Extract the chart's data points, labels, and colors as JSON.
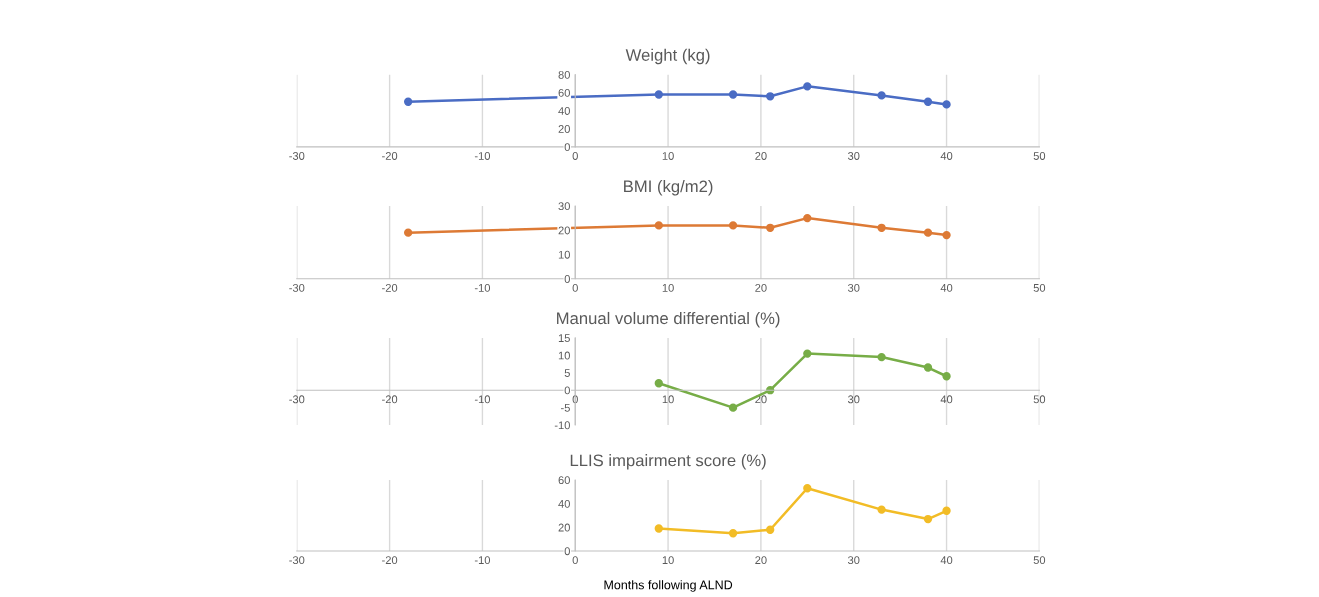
{
  "chart_data": [
    {
      "type": "line",
      "title": "Weight (kg)",
      "series": [
        {
          "color": "#4a6cc4",
          "x": [
            -18,
            9,
            17,
            21,
            25,
            33,
            38,
            40
          ],
          "values": [
            50,
            58,
            58,
            56,
            67,
            57,
            50,
            47
          ]
        }
      ],
      "xlim": [
        -30,
        50
      ],
      "xticks": [
        -30,
        -20,
        -10,
        0,
        10,
        20,
        30,
        40,
        50
      ],
      "ylim": [
        0,
        80
      ],
      "yticks": [
        0,
        20,
        40,
        60,
        80
      ],
      "grid": "x",
      "marker": "circle",
      "line_style": "solid"
    },
    {
      "type": "line",
      "title": "BMI (kg/m2)",
      "series": [
        {
          "color": "#dd7a35",
          "x": [
            -18,
            9,
            17,
            21,
            25,
            33,
            38,
            40
          ],
          "values": [
            19,
            22,
            22,
            21,
            25,
            21,
            19,
            18
          ]
        }
      ],
      "xlim": [
        -30,
        50
      ],
      "xticks": [
        -30,
        -20,
        -10,
        0,
        10,
        20,
        30,
        40,
        50
      ],
      "ylim": [
        0,
        30
      ],
      "yticks": [
        0,
        10,
        20,
        30
      ],
      "grid": "x",
      "marker": "circle",
      "line_style": "solid"
    },
    {
      "type": "line",
      "title": "Manual volume differential (%)",
      "series": [
        {
          "color": "#77ad47",
          "x": [
            9,
            17,
            21,
            25,
            33,
            38,
            40
          ],
          "values": [
            2,
            -5,
            0,
            10.5,
            9.5,
            6.5,
            4
          ]
        }
      ],
      "xlim": [
        -30,
        50
      ],
      "xticks": [
        -30,
        -20,
        -10,
        0,
        10,
        20,
        30,
        40,
        50
      ],
      "ylim": [
        -10,
        15
      ],
      "yticks": [
        -10,
        -5,
        0,
        5,
        10,
        15
      ],
      "grid": "x",
      "marker": "circle",
      "line_style": "solid"
    },
    {
      "type": "line",
      "title": "LLIS impairment score (%)",
      "xlabel": "Months following ALND",
      "series": [
        {
          "color": "#f2bc26",
          "x": [
            9,
            17,
            21,
            25,
            33,
            38,
            40
          ],
          "values": [
            19,
            15,
            18,
            53,
            35,
            27,
            34
          ]
        }
      ],
      "xlim": [
        -30,
        50
      ],
      "xticks": [
        -30,
        -20,
        -10,
        0,
        10,
        20,
        30,
        40,
        50
      ],
      "ylim": [
        0,
        60
      ],
      "yticks": [
        0,
        20,
        40,
        60
      ],
      "grid": "x",
      "marker": "circle",
      "line_style": "solid"
    }
  ]
}
